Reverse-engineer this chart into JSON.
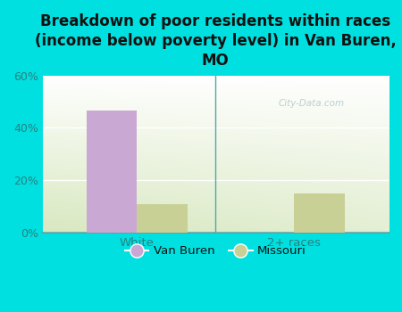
{
  "title": "Breakdown of poor residents within races\n(income below poverty level) in Van Buren,\nMO",
  "categories": [
    "White",
    "2+ races"
  ],
  "van_buren_values": [
    46.5,
    0
  ],
  "missouri_values": [
    11.0,
    15.0
  ],
  "van_buren_color": "#c9a8d4",
  "missouri_color": "#c8d096",
  "background_color": "#00e0e0",
  "ylim": [
    0,
    60
  ],
  "yticks": [
    0,
    20,
    40,
    60
  ],
  "ytick_labels": [
    "0%",
    "20%",
    "40%",
    "60%"
  ],
  "legend_labels": [
    "Van Buren",
    "Missouri"
  ],
  "watermark": "City-Data.com",
  "title_fontsize": 12,
  "tick_color": "#2a8080",
  "axis_line_color": "#50a8a8",
  "bar_width": 0.32
}
